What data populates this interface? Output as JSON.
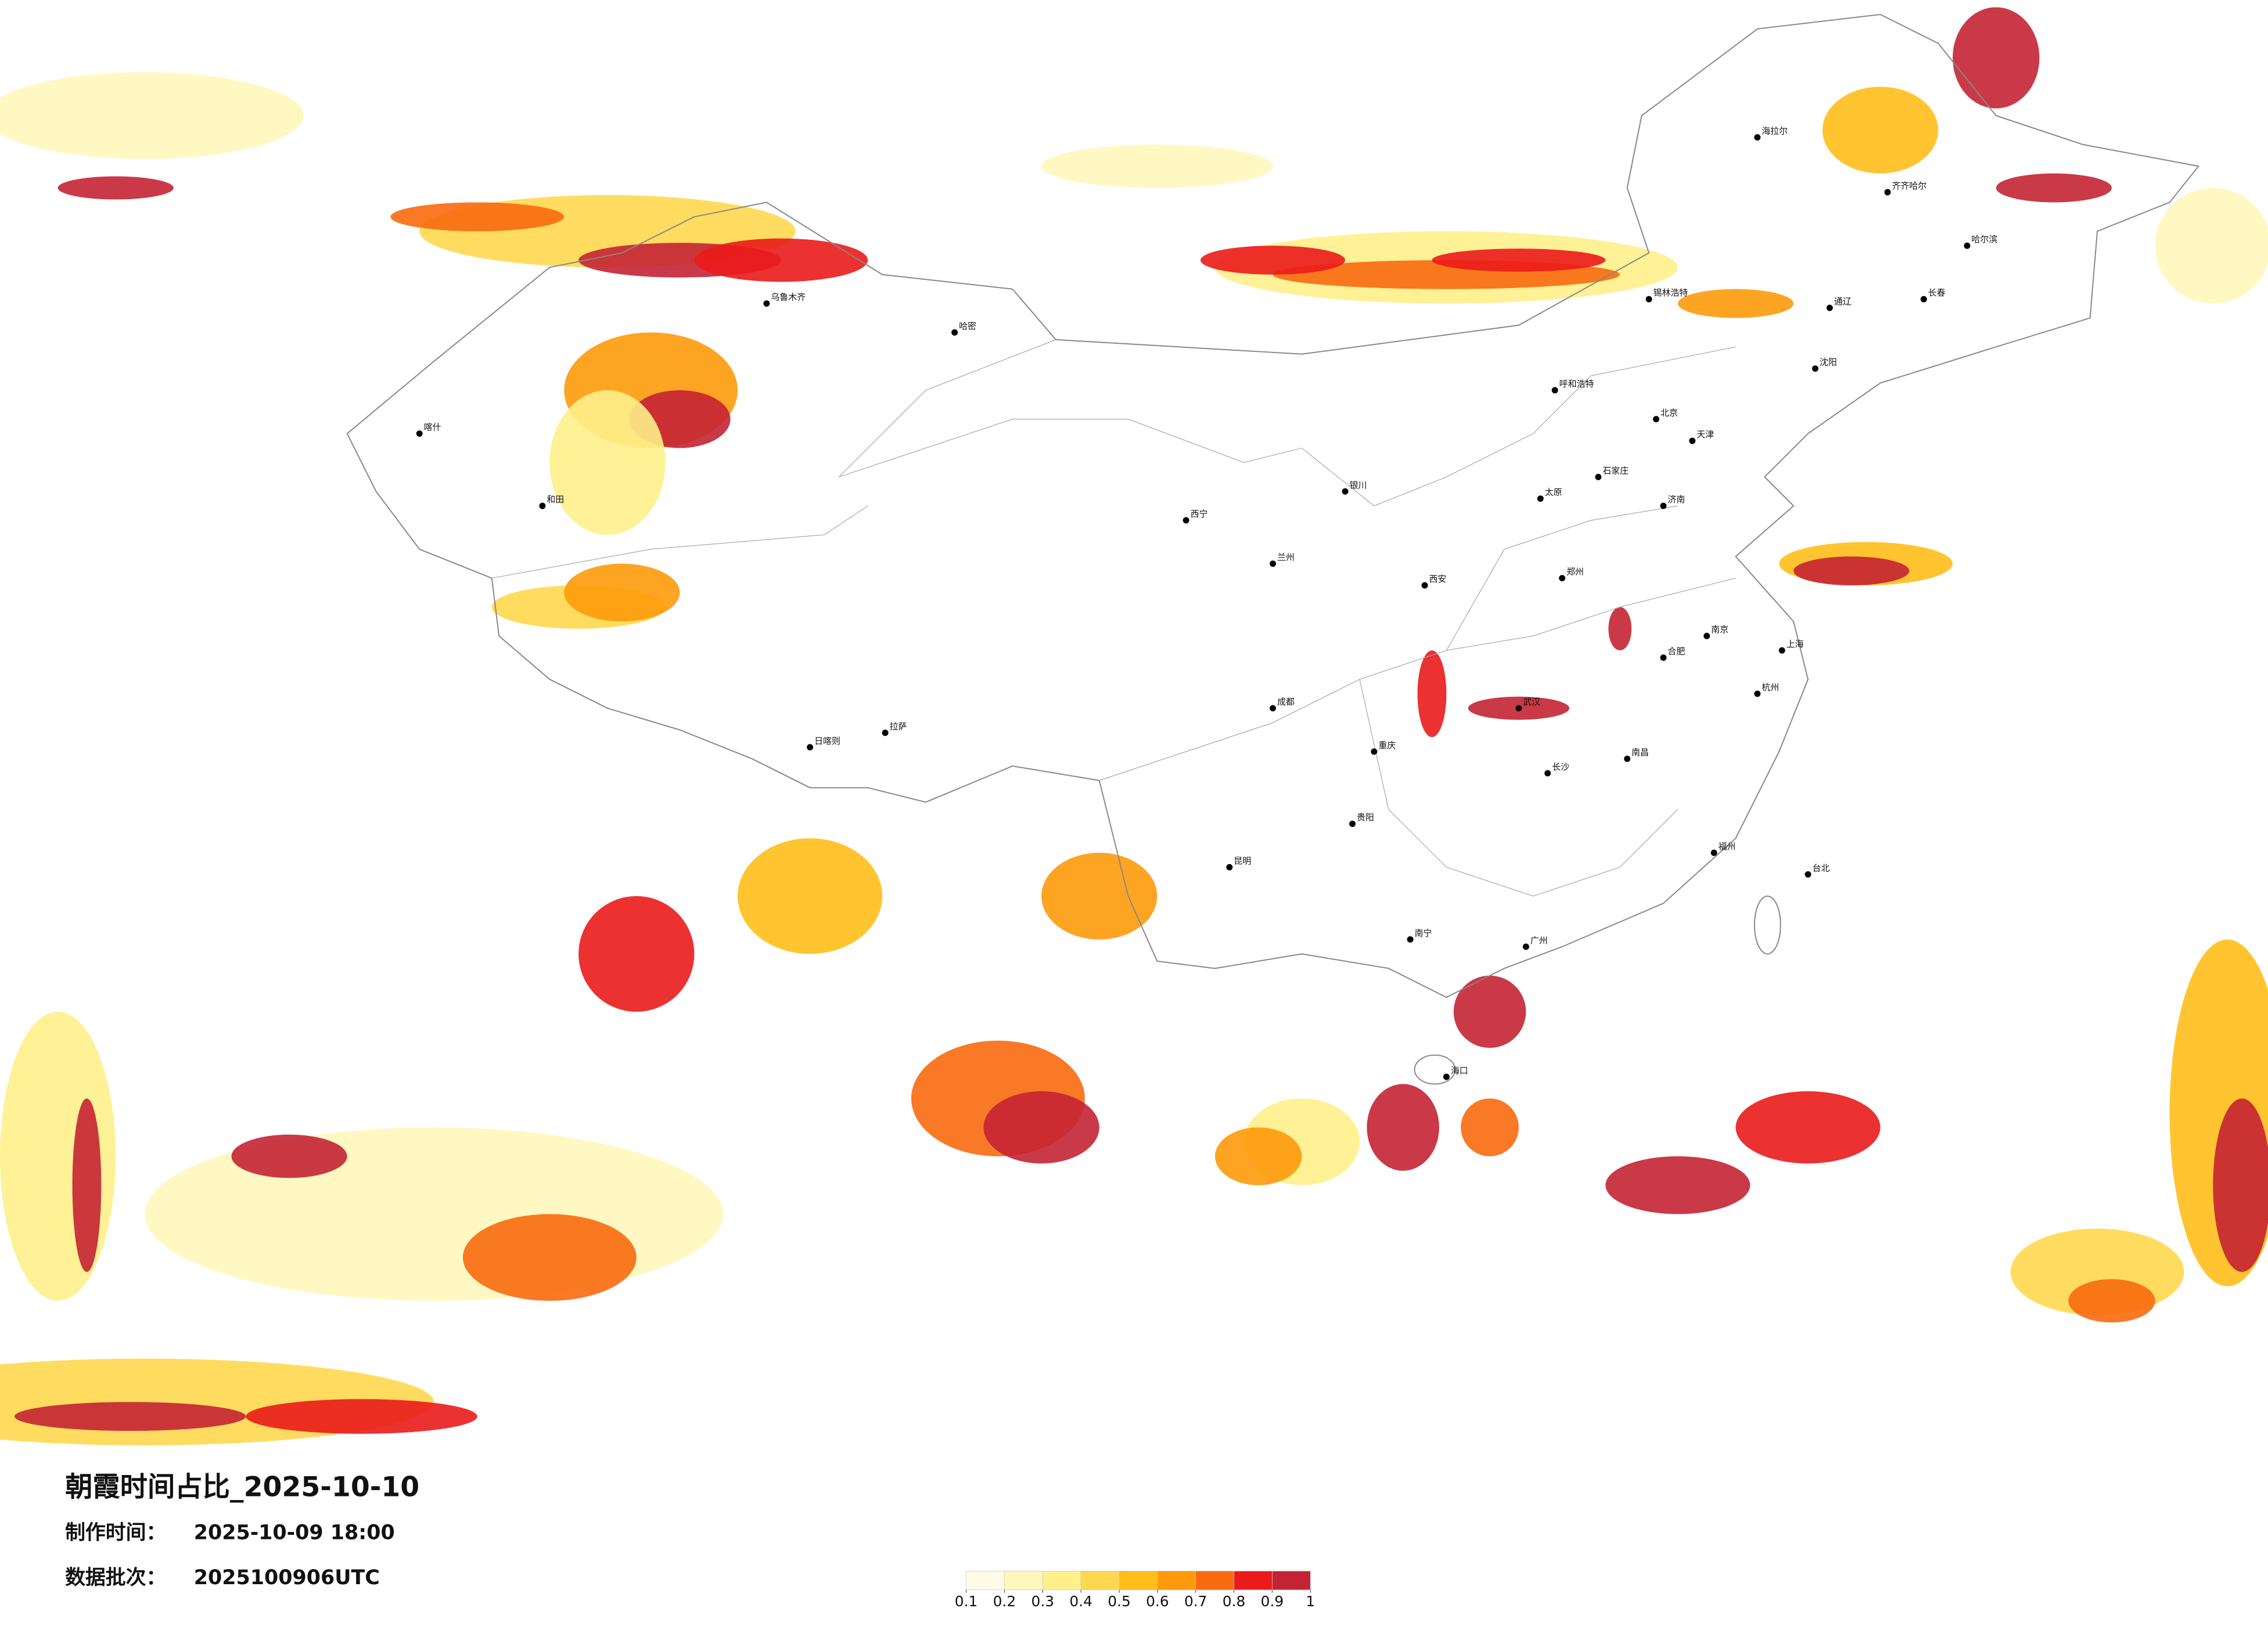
{
  "header": {
    "title": "朝霞时间占比_2025-10-10",
    "production_time_label": "制作时间：",
    "production_time": "2025-10-09 18:00",
    "batch_label": "数据批次：",
    "batch": "2025100906UTC"
  },
  "colorbar": {
    "ticks": [
      0.1,
      0.2,
      0.3,
      0.4,
      0.5,
      0.6,
      0.7,
      0.8,
      0.9,
      1
    ],
    "colors": [
      "#fffbe6",
      "#fff7bc",
      "#fff08a",
      "#ffd84f",
      "#ffbe1a",
      "#fe9a0b",
      "#f86a0f",
      "#ea1b1b",
      "#c42333"
    ]
  },
  "cities": [
    "海拉尔",
    "齐齐哈尔",
    "哈尔滨",
    "长春",
    "通辽",
    "沈阳",
    "锡林浩特",
    "呼和浩特",
    "北京",
    "天津",
    "石家庄",
    "太原",
    "济南",
    "郑州",
    "西安",
    "兰州",
    "银川",
    "西宁",
    "乌鲁木齐",
    "喀什",
    "和田",
    "哈密",
    "拉萨",
    "日喀则",
    "成都",
    "重庆",
    "昆明",
    "贵阳",
    "南宁",
    "广州",
    "长沙",
    "武汉",
    "南昌",
    "合肥",
    "南京",
    "上海",
    "杭州",
    "福州",
    "台北",
    "海口"
  ]
}
